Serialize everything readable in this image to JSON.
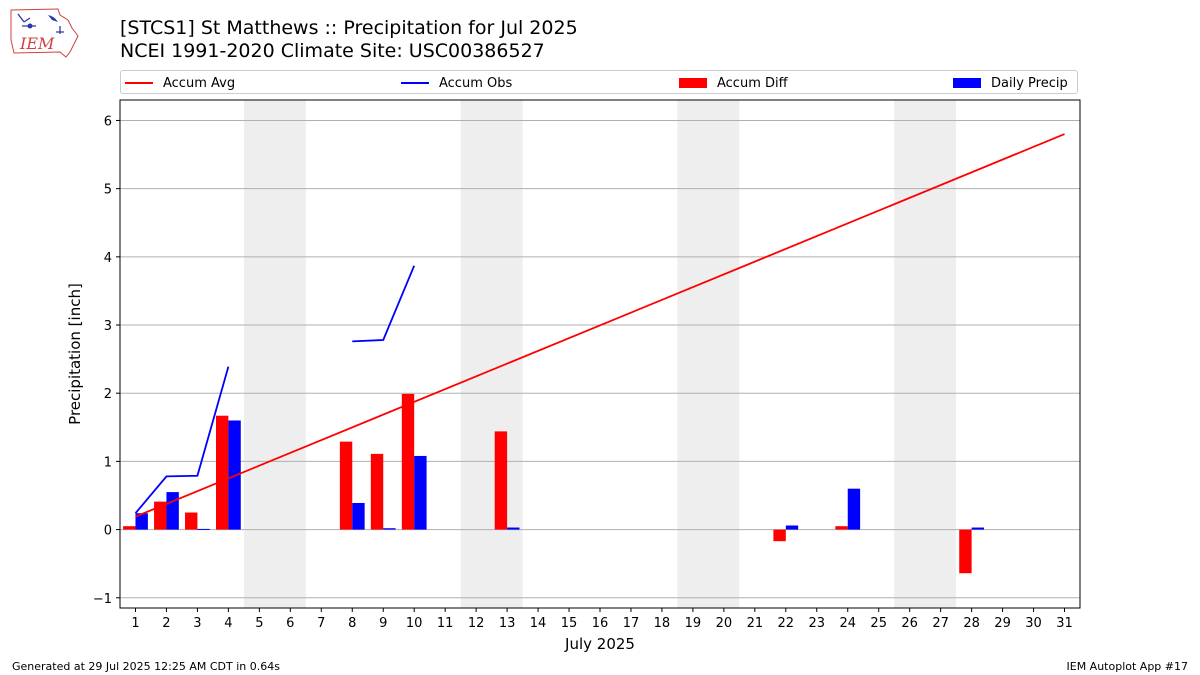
{
  "header": {
    "title_line1": "[STCS1] St Matthews :: Precipitation for Jul 2025",
    "title_line2": "NCEI 1991-2020 Climate Site: USC00386527",
    "logo_text": "IEM"
  },
  "footer": {
    "generated": "Generated at 29 Jul 2025 12:25 AM CDT in 0.64s",
    "app": "IEM Autoplot App #17"
  },
  "legend": {
    "accum_avg": "Accum Avg",
    "accum_obs": "Accum Obs",
    "accum_diff": "Accum Diff",
    "daily_precip": "Daily Precip"
  },
  "colors": {
    "accum_avg": "#ff0000",
    "accum_obs": "#0000ff",
    "accum_diff": "#ff0000",
    "daily_precip": "#0000ff",
    "weekend_band": "#eeeeee",
    "grid": "#b0b0b0"
  },
  "chart_data": {
    "type": "bar",
    "xlabel": "July 2025",
    "ylabel": "Precipitation [inch]",
    "xlim": [
      0.5,
      31.5
    ],
    "ylim": [
      -1.15,
      6.3
    ],
    "yticks": [
      -1,
      0,
      1,
      2,
      3,
      4,
      5,
      6
    ],
    "days": [
      1,
      2,
      3,
      4,
      5,
      6,
      7,
      8,
      9,
      10,
      11,
      12,
      13,
      14,
      15,
      16,
      17,
      18,
      19,
      20,
      21,
      22,
      23,
      24,
      25,
      26,
      27,
      28,
      29,
      30,
      31
    ],
    "weekend_bands": [
      [
        5,
        6
      ],
      [
        12,
        13
      ],
      [
        19,
        20
      ],
      [
        26,
        27
      ]
    ],
    "grid": "horizontal",
    "legend_position": "top",
    "accum_avg": {
      "name": "Accum Avg",
      "start": [
        1,
        0.19
      ],
      "end": [
        31,
        5.8
      ]
    },
    "accum_obs": {
      "name": "Accum Obs",
      "segments": [
        [
          [
            1,
            0.24
          ],
          [
            2,
            0.78
          ],
          [
            3,
            0.79
          ],
          [
            4,
            2.39
          ]
        ],
        [
          [
            8,
            2.76
          ],
          [
            9,
            2.78
          ],
          [
            10,
            3.87
          ]
        ]
      ]
    },
    "accum_diff": {
      "name": "Accum Diff",
      "points": [
        [
          1,
          0.05
        ],
        [
          2,
          0.41
        ],
        [
          3,
          0.25
        ],
        [
          4,
          1.67
        ],
        [
          8,
          1.29
        ],
        [
          9,
          1.11
        ],
        [
          10,
          1.99
        ],
        [
          13,
          1.44
        ],
        [
          22,
          -0.17
        ],
        [
          24,
          0.05
        ],
        [
          28,
          -0.64
        ]
      ]
    },
    "daily_precip": {
      "name": "Daily Precip",
      "points": [
        [
          1,
          0.24
        ],
        [
          2,
          0.55
        ],
        [
          3,
          0.01
        ],
        [
          4,
          1.6
        ],
        [
          8,
          0.39
        ],
        [
          9,
          0.02
        ],
        [
          10,
          1.08
        ],
        [
          13,
          0.03
        ],
        [
          22,
          0.06
        ],
        [
          24,
          0.6
        ],
        [
          28,
          0.03
        ]
      ]
    }
  }
}
